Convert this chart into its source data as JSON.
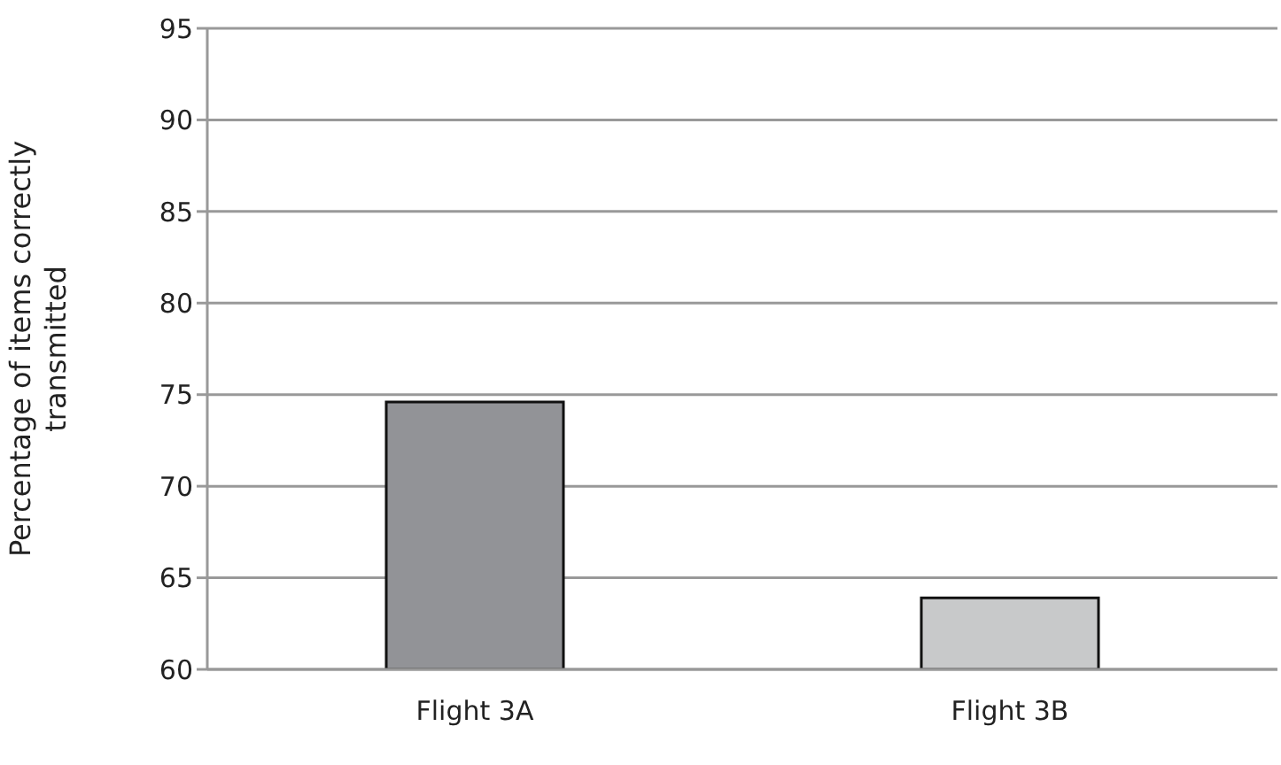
{
  "chart_data": {
    "type": "bar",
    "ylabel": "Percentage of items correctly transmitted",
    "categories": [
      "Flight 3A",
      "Flight 3B"
    ],
    "values": [
      74.6,
      63.9
    ],
    "colors": [
      "#929397",
      "#c8c9ca"
    ],
    "ylim": [
      60,
      95
    ],
    "yticks": [
      60,
      65,
      70,
      75,
      80,
      85,
      90,
      95
    ],
    "grid": "y"
  }
}
